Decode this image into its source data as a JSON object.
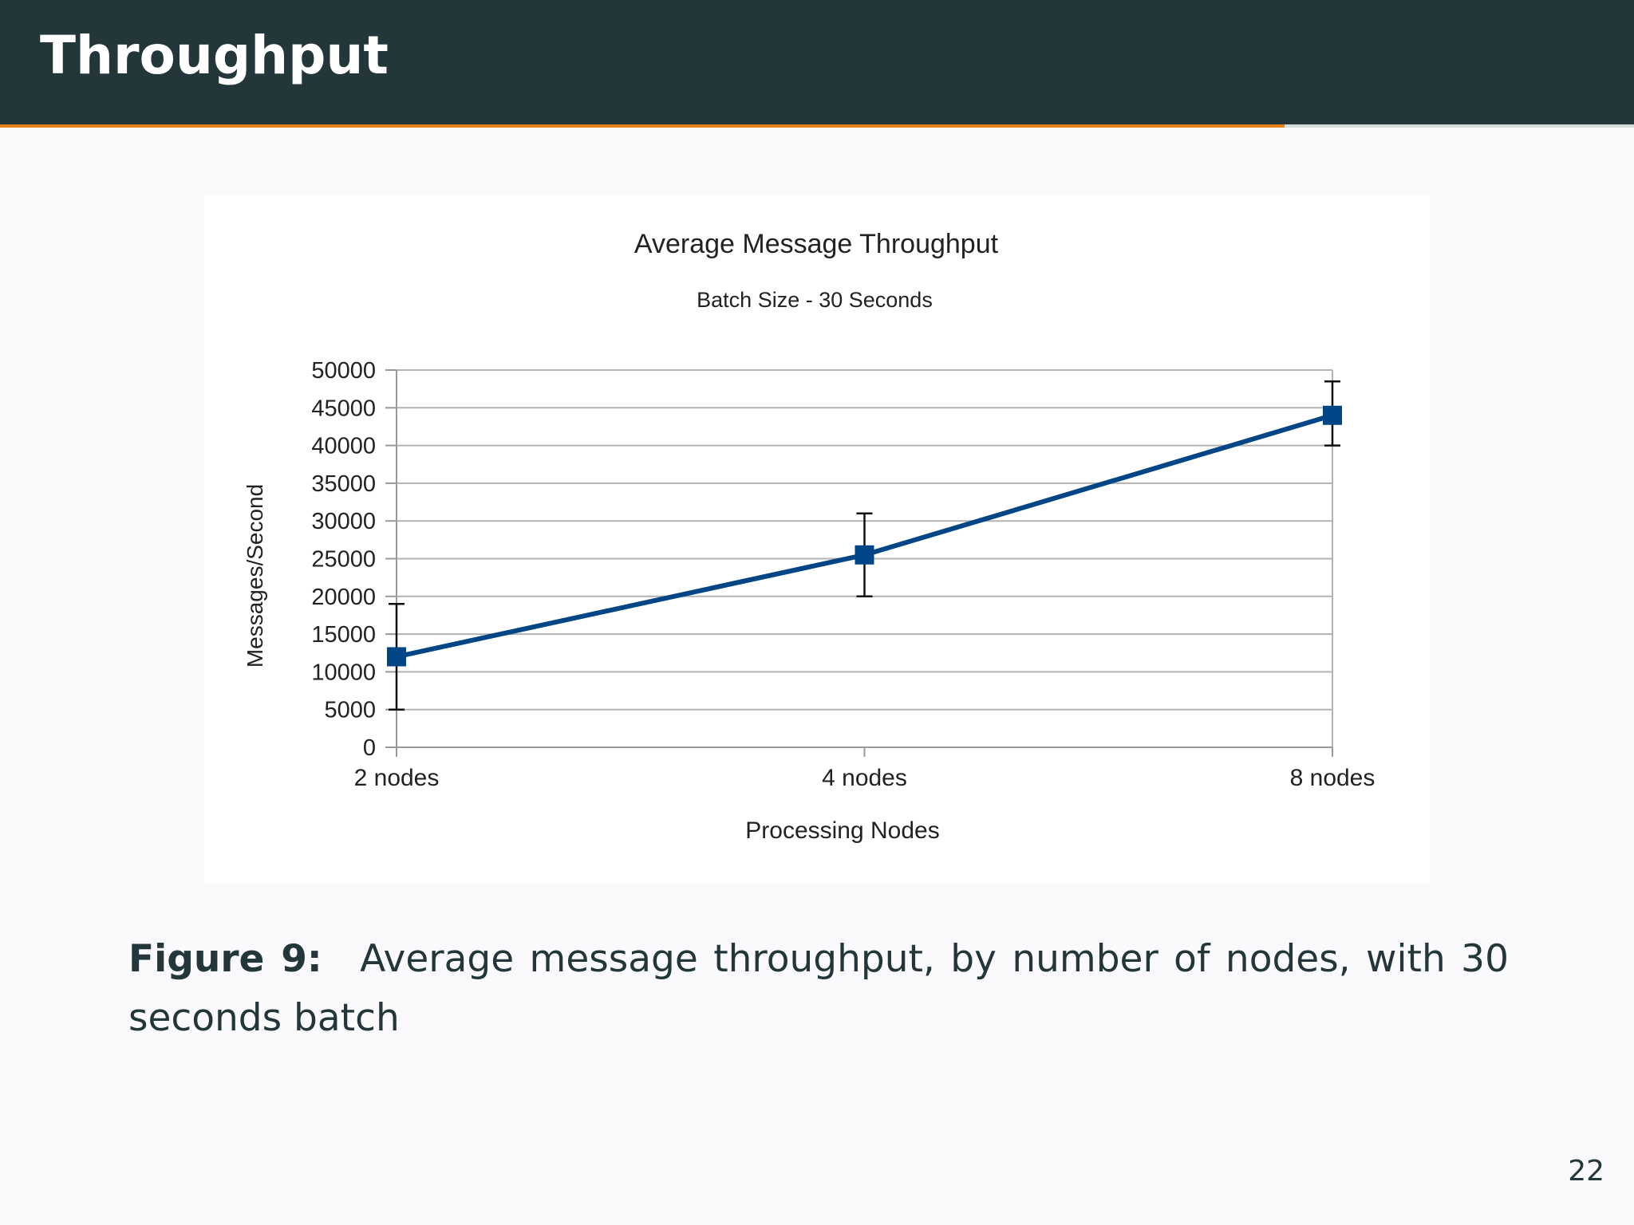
{
  "slide": {
    "title": "Throughput",
    "progress": 0.786,
    "page_number": "22"
  },
  "caption": {
    "label": "Figure 9:",
    "text": "Average message throughput, by number of nodes, with 30 seconds batch"
  },
  "colors": {
    "header_bg": "#23373b",
    "accent": "#eb811b",
    "series": "#004586",
    "grid": "#b3b3b3"
  },
  "chart_data": {
    "type": "line",
    "title": "Average Message Throughput",
    "subtitle": "Batch Size - 30 Seconds",
    "xlabel": "Processing Nodes",
    "ylabel": "Messages/Second",
    "categories": [
      "2 nodes",
      "4 nodes",
      "8 nodes"
    ],
    "yticks": [
      "0",
      "5000",
      "10000",
      "15000",
      "20000",
      "25000",
      "30000",
      "35000",
      "40000",
      "45000",
      "50000"
    ],
    "ylim": [
      0,
      50000
    ],
    "grid": true,
    "series": [
      {
        "values": [
          12000,
          25500,
          44000
        ],
        "error_low": [
          5000,
          20000,
          40000
        ],
        "error_high": [
          19000,
          31000,
          48500
        ],
        "color": "#004586",
        "marker": "square"
      }
    ]
  }
}
